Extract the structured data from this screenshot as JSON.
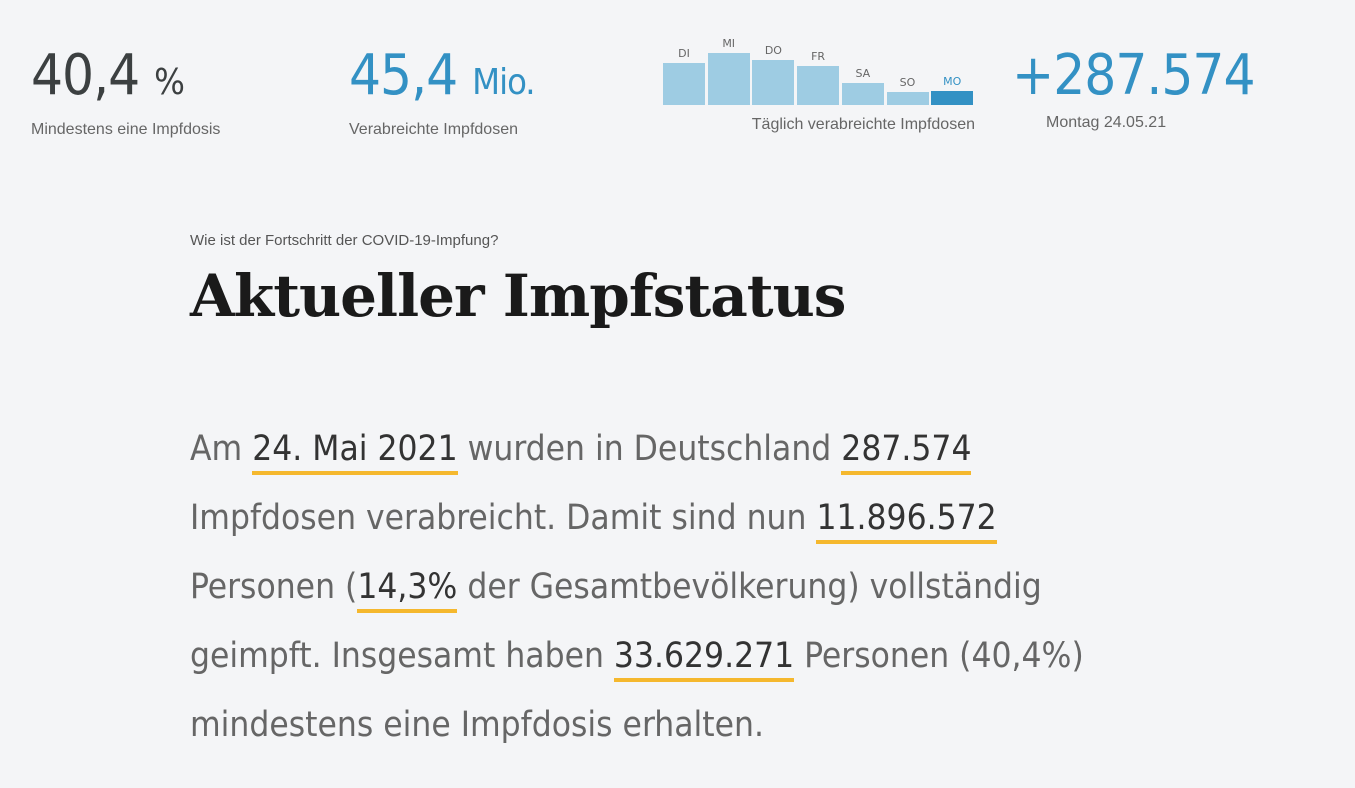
{
  "stats": {
    "first_dose": {
      "value": "40,4",
      "unit": "%",
      "label": "Mindestens eine Impfdosis"
    },
    "total_doses": {
      "value": "45,4",
      "unit": "Mio.",
      "label": "Verabreichte Impfdosen"
    },
    "today": {
      "value": "+287.574",
      "label": "Montag 24.05.21"
    }
  },
  "daily_chart": {
    "label": "Täglich verabreichte Impfdosen",
    "days": [
      "DI",
      "MI",
      "DO",
      "FR",
      "SA",
      "SO",
      "MO"
    ],
    "values_estimated": [
      860000,
      1070000,
      920000,
      800000,
      450000,
      270000,
      287574
    ],
    "highlight_index": 6,
    "colors": {
      "bar": "#9ecce3",
      "highlight": "#3391c4"
    }
  },
  "article": {
    "kicker": "Wie ist der Fortschritt der COVID-19-Impfung?",
    "title": "Aktueller Impfstatus",
    "p": [
      "Am ",
      "24. Mai 2021",
      " wurden in Deutschland ",
      "287.574",
      " Impfdosen verabreicht. Damit sind nun ",
      "11.896.572",
      " Personen (",
      "14,3%",
      " der Gesamtbevölkerung) vollständig geimpft. Insgesamt haben ",
      "33.629.271",
      " Personen (40,4%) mindestens eine Impfdosis erhalten."
    ]
  }
}
